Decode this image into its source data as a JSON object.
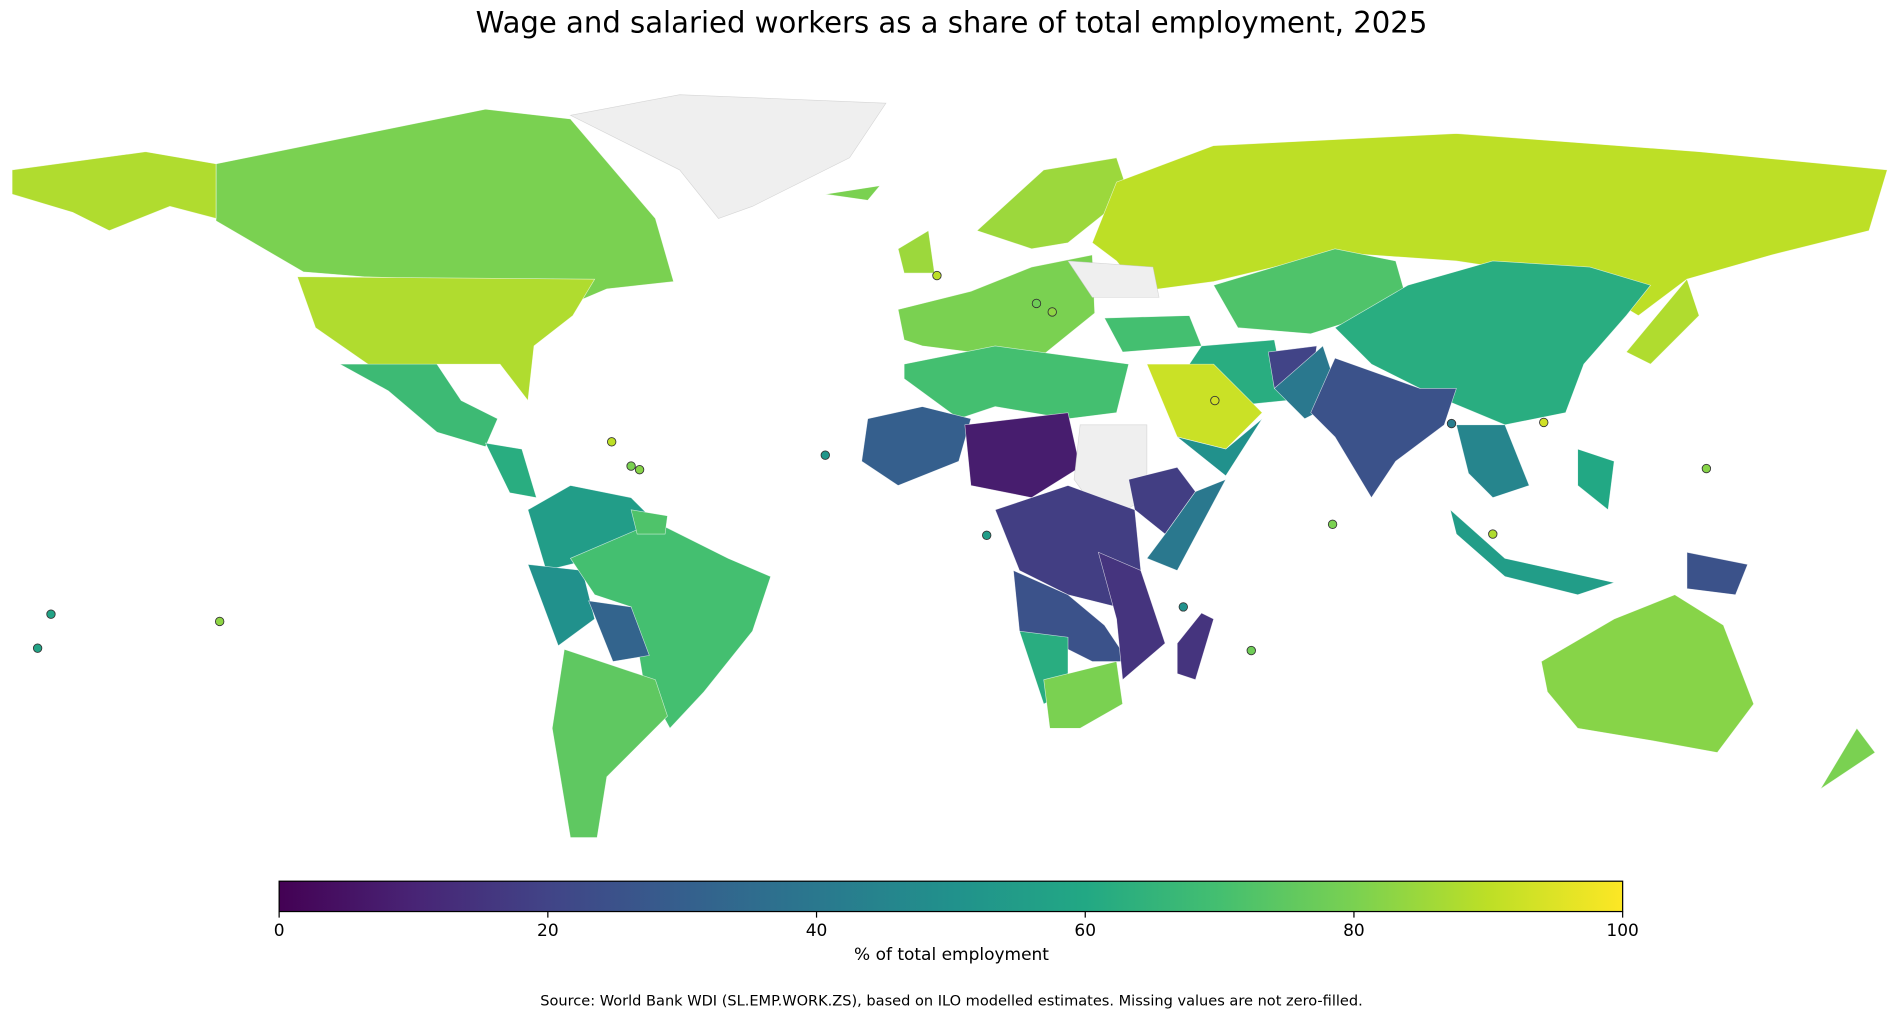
{
  "chart_data": {
    "type": "choropleth",
    "title": "Wage and salaried workers as a share of total employment, 2025",
    "colorbar_label": "% of total employment",
    "source": "Source: World Bank WDI (SL.EMP.WORK.ZS), based on ILO modelled estimates. Missing values are not zero-filled.",
    "cmap": "viridis",
    "clim": [
      0,
      100
    ],
    "ticks": [
      0,
      20,
      40,
      60,
      80,
      100
    ],
    "missing_color": "#efefef",
    "values": [
      80,
      88,
      68,
      62,
      null,
      55,
      50,
      70,
      32,
      75,
      80,
      85,
      90,
      null,
      70,
      72,
      62,
      62,
      20,
      40,
      25,
      45,
      88,
      92,
      50,
      70,
      30,
      8,
      null,
      18,
      40,
      18,
      25,
      62,
      80,
      15,
      15,
      55,
      25,
      60,
      82,
      80,
      85,
      80,
      72
    ],
    "island_values": [
      90,
      78,
      83,
      90,
      80,
      82,
      52,
      55,
      93,
      42,
      93,
      82,
      80,
      88,
      50,
      78,
      58,
      83,
      58
    ]
  }
}
